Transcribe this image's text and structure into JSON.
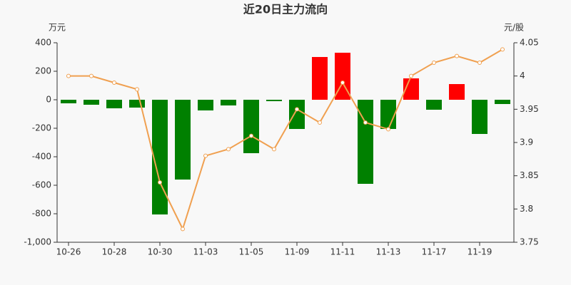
{
  "chart_data": {
    "type": "bar",
    "title": "近20日主力流向",
    "y_label": "万元",
    "y2_label": "元/股",
    "categories": [
      "10-26",
      null,
      "10-28",
      null,
      "10-30",
      null,
      "11-03",
      null,
      "11-05",
      null,
      "11-09",
      null,
      "11-11",
      null,
      "11-13",
      null,
      "11-17",
      null,
      "11-19",
      null
    ],
    "series": [
      {
        "type": "bar",
        "color_positive": "#ff0000",
        "color_negative": "#008000",
        "values": [
          -25,
          -35,
          -60,
          -55,
          -805,
          -560,
          -75,
          -40,
          -375,
          -10,
          -205,
          300,
          330,
          -590,
          -205,
          150,
          -70,
          110,
          -240,
          -30
        ]
      },
      {
        "type": "line",
        "axis": "y2",
        "color": "#f0a050",
        "values": [
          4.0,
          4.0,
          3.99,
          3.98,
          3.84,
          3.77,
          3.88,
          3.89,
          3.91,
          3.89,
          3.95,
          3.93,
          3.99,
          3.93,
          3.92,
          4.0,
          4.02,
          4.03,
          4.02,
          4.04
        ]
      }
    ],
    "ylim": [
      -1000,
      400
    ],
    "yticks": [
      {
        "value": -1000,
        "label": "-1,000"
      },
      -800,
      -600,
      -400,
      -200,
      0,
      200,
      400
    ],
    "y2lim": [
      3.75,
      4.05
    ],
    "y2ticks": [
      3.75,
      3.8,
      3.85,
      3.9,
      3.95,
      4,
      4.05
    ],
    "grid": false
  }
}
